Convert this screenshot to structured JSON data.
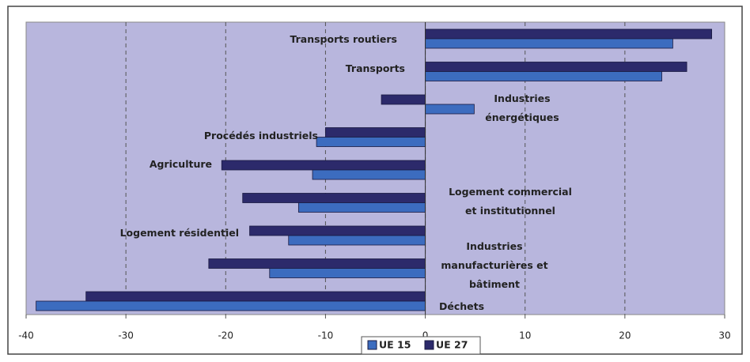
{
  "chart_data": {
    "type": "hbar",
    "categories": [
      "Transports routiers",
      "Transports",
      "Industries\nénergétiques",
      "Procédés industriels",
      "Agriculture",
      "Logement commercial\net institutionnel",
      "Logement résidentiel",
      "Industries\nmanufacturières et\nbâtiment",
      "Déchets"
    ],
    "series": [
      {
        "name": "UE 27",
        "color": "#2c2a6b",
        "values": [
          28.7,
          26.2,
          -4.4,
          -10.0,
          -20.4,
          -18.3,
          -17.6,
          -21.7,
          -34.0
        ]
      },
      {
        "name": "UE 15",
        "color": "#3c6cbf",
        "values": [
          24.8,
          23.7,
          4.9,
          -10.9,
          -11.3,
          -12.7,
          -13.7,
          -15.6,
          -39.0
        ]
      }
    ],
    "xlim": [
      -40,
      30
    ],
    "xticks": [
      -40,
      -30,
      -20,
      -10,
      0,
      10,
      20,
      30
    ],
    "grid": true,
    "legend": "bottom"
  }
}
